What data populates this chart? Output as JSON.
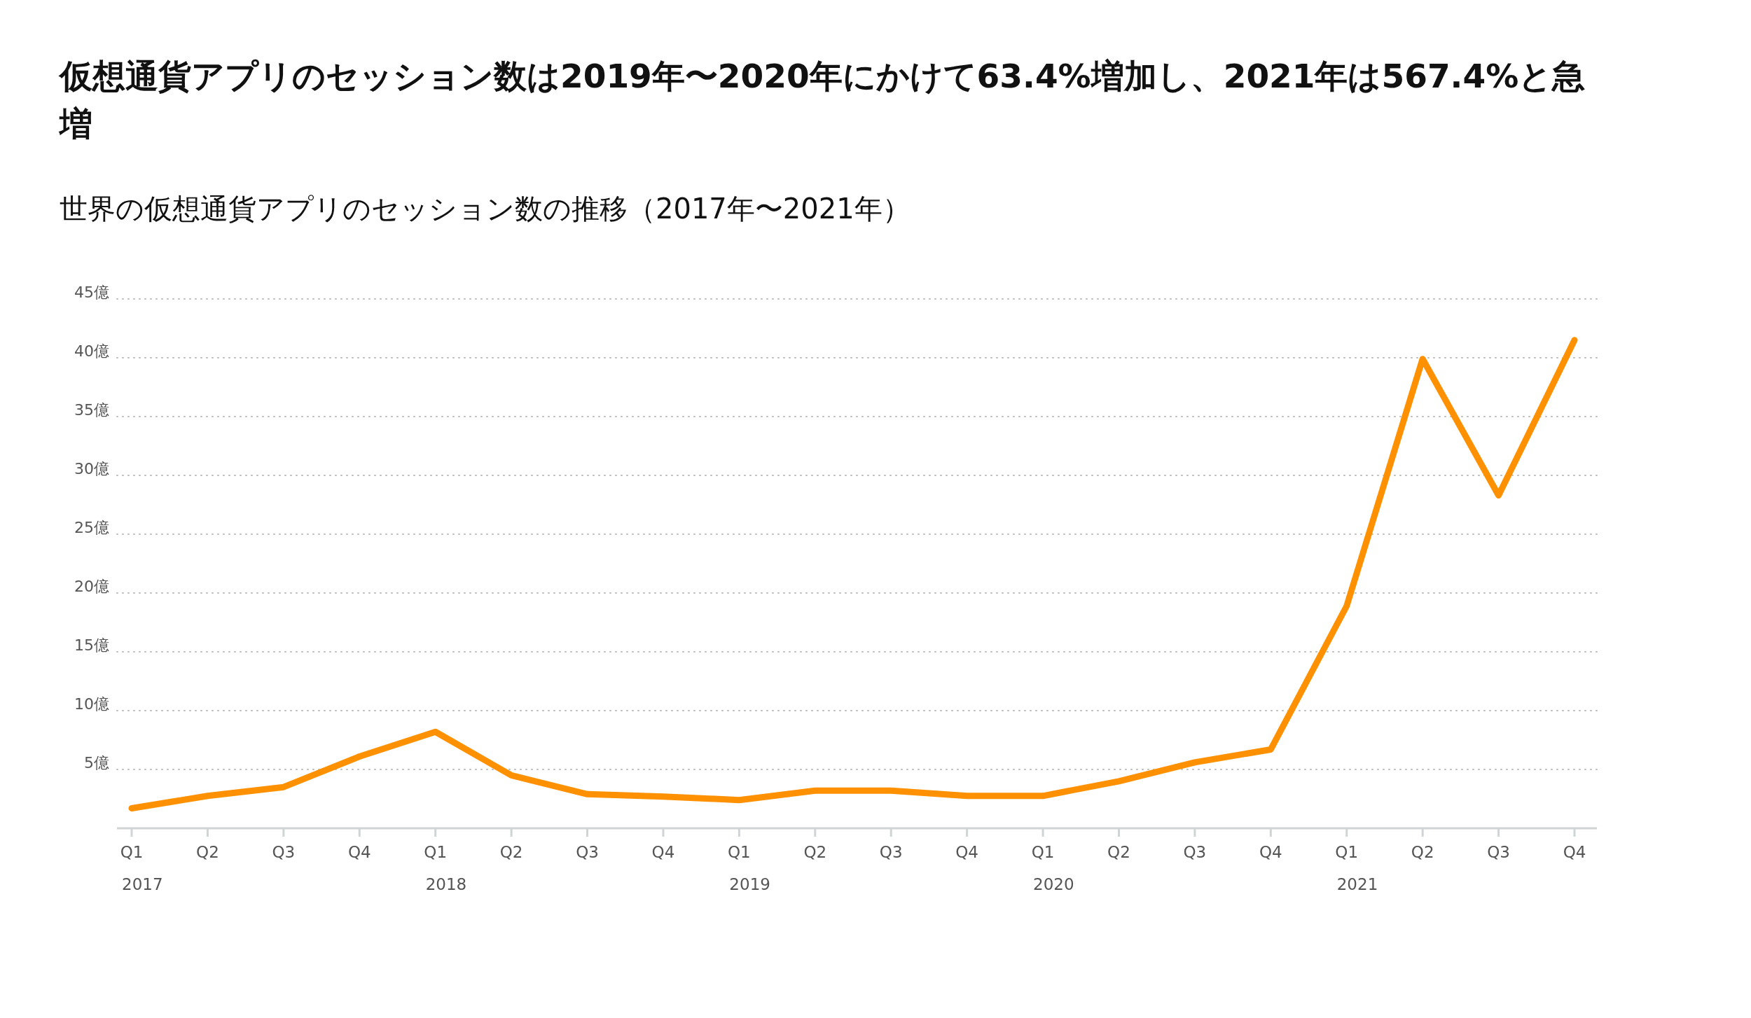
{
  "chart_data": {
    "type": "line",
    "title": "仮想通貨アプリのセッション数は2019年〜2020年にかけて63.4%増加し、2021年は567.4%と急増",
    "subtitle": "世界の仮想通貨アプリのセッション数の推移（2017年〜2021年）",
    "categories": [
      "Q1",
      "Q2",
      "Q3",
      "Q4",
      "Q1",
      "Q2",
      "Q3",
      "Q4",
      "Q1",
      "Q2",
      "Q3",
      "Q4",
      "Q1",
      "Q2",
      "Q3",
      "Q4",
      "Q1",
      "Q2",
      "Q3",
      "Q4"
    ],
    "annotations": [
      "2017",
      "2018",
      "2019",
      "2020",
      "2021"
    ],
    "series": [
      {
        "color": "#ff9100",
        "values": [
          1.7,
          2.75,
          3.5,
          6.1,
          8.2,
          4.5,
          2.9,
          2.7,
          2.4,
          3.2,
          3.2,
          2.75,
          2.75,
          4.0,
          5.6,
          6.7,
          18.9,
          39.9,
          28.3,
          41.5
        ]
      }
    ],
    "ylim": [
      0,
      45
    ],
    "yticks": [
      {
        "value": 5,
        "label": "5億"
      },
      {
        "value": 10,
        "label": "10億"
      },
      {
        "value": 15,
        "label": "15億"
      },
      {
        "value": 20,
        "label": "20億"
      },
      {
        "value": 25,
        "label": "25億"
      },
      {
        "value": 30,
        "label": "30億"
      },
      {
        "value": 35,
        "label": "35億"
      },
      {
        "value": 40,
        "label": "40億"
      },
      {
        "value": 45,
        "label": "45億"
      }
    ],
    "grid": "y",
    "marker": "none",
    "line_style": "solid"
  }
}
